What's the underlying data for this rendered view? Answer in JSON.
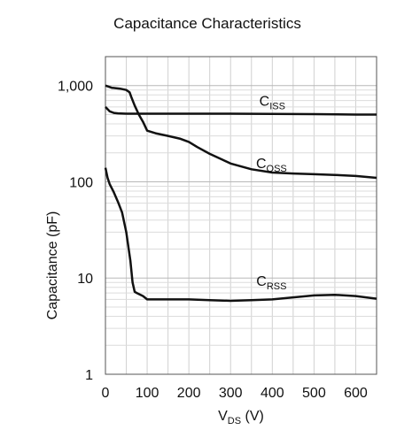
{
  "chart_data": {
    "type": "line",
    "title": "Capacitance Characteristics",
    "xlabel_main": "V",
    "xlabel_sub": "DS",
    "xlabel_unit": " (V)",
    "ylabel": "Capacitance (pF)",
    "xlim": [
      0,
      650
    ],
    "ylim": [
      1,
      2000
    ],
    "y_scale": "log",
    "grid": true,
    "x_ticks": [
      0,
      100,
      200,
      300,
      400,
      500,
      600
    ],
    "x_tick_labels": [
      "0",
      "100",
      "200",
      "300",
      "400",
      "500",
      "600"
    ],
    "y_ticks": [
      1,
      10,
      100,
      1000
    ],
    "y_tick_labels": [
      "1",
      "10",
      "100",
      "1,000"
    ],
    "series": [
      {
        "name": "CISS",
        "label_main": "C",
        "label_sub": "ISS",
        "x": [
          0,
          10,
          20,
          30,
          50,
          100,
          200,
          300,
          400,
          500,
          600,
          650
        ],
        "y": [
          600,
          540,
          520,
          515,
          510,
          510,
          510,
          510,
          508,
          505,
          500,
          500
        ]
      },
      {
        "name": "COSS",
        "label_main": "C",
        "label_sub": "OSS",
        "x": [
          0,
          15,
          35,
          50,
          58,
          62,
          70,
          80,
          90,
          100,
          120,
          150,
          180,
          200,
          220,
          250,
          280,
          300,
          350,
          400,
          450,
          500,
          550,
          600,
          650
        ],
        "y": [
          1000,
          950,
          930,
          900,
          850,
          760,
          620,
          500,
          420,
          340,
          320,
          300,
          280,
          260,
          230,
          195,
          170,
          155,
          135,
          125,
          122,
          120,
          118,
          115,
          110
        ]
      },
      {
        "name": "CRSS",
        "label_main": "C",
        "label_sub": "RSS",
        "x": [
          0,
          5,
          10,
          20,
          30,
          40,
          50,
          60,
          65,
          70,
          75,
          90,
          100,
          110,
          150,
          200,
          250,
          300,
          350,
          400,
          450,
          500,
          550,
          600,
          650
        ],
        "y": [
          140,
          110,
          95,
          78,
          62,
          48,
          30,
          15,
          9,
          7.2,
          7,
          6.5,
          6,
          6,
          6,
          6,
          5.9,
          5.8,
          5.9,
          6,
          6.3,
          6.6,
          6.7,
          6.5,
          6.1
        ]
      }
    ]
  }
}
